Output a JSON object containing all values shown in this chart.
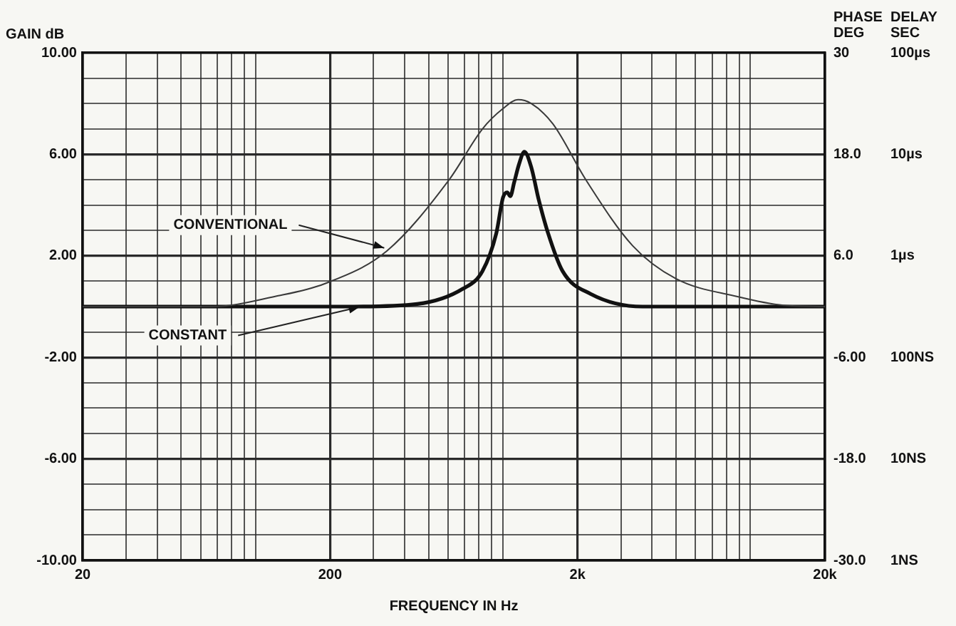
{
  "chart_data": {
    "type": "line",
    "xlabel": "FREQUENCY IN Hz",
    "ylabel": "GAIN dB",
    "y2label": "PHASE DEG",
    "y3label": "DELAY SEC",
    "log": "x",
    "grid": true,
    "legend": false,
    "marker": "none",
    "line_style": "solid",
    "xlim": [
      20,
      20000
    ],
    "xticks": [
      {
        "value": 20,
        "label": "20"
      },
      {
        "value": 30,
        "label": null
      },
      {
        "value": 40,
        "label": null
      },
      {
        "value": 50,
        "label": null
      },
      {
        "value": 60,
        "label": null
      },
      {
        "value": 70,
        "label": null
      },
      {
        "value": 80,
        "label": null
      },
      {
        "value": 90,
        "label": null
      },
      {
        "value": 100,
        "label": null
      },
      {
        "value": 200,
        "label": "200"
      },
      {
        "value": 300,
        "label": null
      },
      {
        "value": 400,
        "label": null
      },
      {
        "value": 500,
        "label": null
      },
      {
        "value": 600,
        "label": null
      },
      {
        "value": 700,
        "label": null
      },
      {
        "value": 800,
        "label": null
      },
      {
        "value": 900,
        "label": null
      },
      {
        "value": 1000,
        "label": null
      },
      {
        "value": 2000,
        "label": "2k"
      },
      {
        "value": 3000,
        "label": null
      },
      {
        "value": 4000,
        "label": null
      },
      {
        "value": 5000,
        "label": null
      },
      {
        "value": 6000,
        "label": null
      },
      {
        "value": 7000,
        "label": null
      },
      {
        "value": 8000,
        "label": null
      },
      {
        "value": 9000,
        "label": null
      },
      {
        "value": 10000,
        "label": null
      },
      {
        "value": 20000,
        "label": "20k"
      }
    ],
    "ylim": [
      -10,
      10
    ],
    "yticks": [
      {
        "value": -10,
        "label": "-10.00"
      },
      {
        "value": -9,
        "label": null
      },
      {
        "value": -8,
        "label": null
      },
      {
        "value": -7,
        "label": null
      },
      {
        "value": -6,
        "label": "-6.00"
      },
      {
        "value": -5,
        "label": null
      },
      {
        "value": -4,
        "label": null
      },
      {
        "value": -3,
        "label": null
      },
      {
        "value": -2,
        "label": "-2.00"
      },
      {
        "value": -1,
        "label": null
      },
      {
        "value": 0,
        "label": null
      },
      {
        "value": 1,
        "label": null
      },
      {
        "value": 2,
        "label": "2.00"
      },
      {
        "value": 3,
        "label": null
      },
      {
        "value": 4,
        "label": null
      },
      {
        "value": 5,
        "label": null
      },
      {
        "value": 6,
        "label": "6.00"
      },
      {
        "value": 7,
        "label": null
      },
      {
        "value": 8,
        "label": null
      },
      {
        "value": 9,
        "label": null
      },
      {
        "value": 10,
        "label": "10.00"
      }
    ],
    "y2lim": [
      -30,
      30
    ],
    "y2ticks": [
      {
        "value": -30,
        "label": "-30.0"
      },
      {
        "value": -18,
        "label": "-18.0"
      },
      {
        "value": -6,
        "label": "-6.00"
      },
      {
        "value": 6,
        "label": "6.0"
      },
      {
        "value": 18,
        "label": "18.0"
      },
      30
    ],
    "series": [
      {
        "color": "#3a3a3a",
        "x": [
          20,
          67,
          120,
          190,
          340,
          606,
          826,
          1000,
          1150,
          1300,
          1590,
          2160,
          3340,
          5000,
          8800,
          13600,
          20000
        ],
        "values": [
          0,
          0,
          0.4,
          0.9,
          2.2,
          5.0,
          7.0,
          7.8,
          8.15,
          8.0,
          7.2,
          5.0,
          2.4,
          1.1,
          0.4,
          0.05,
          0
        ]
      },
      {
        "color": "#111111",
        "x": [
          20,
          250,
          450,
          688,
          826,
          940,
          1000,
          1040,
          1070,
          1110,
          1160,
          1220,
          1300,
          1395,
          1520,
          1740,
          2260,
          3660,
          20000
        ],
        "values": [
          0,
          0,
          0.1,
          0.7,
          1.4,
          2.9,
          4.3,
          4.5,
          4.35,
          4.9,
          5.6,
          6.1,
          5.5,
          4.2,
          2.9,
          1.4,
          0.5,
          0,
          0
        ]
      }
    ],
    "annotations": [
      {
        "text": "CONVENTIONAL",
        "x": 340,
        "y": 2.2
      },
      {
        "text": "CONSTANT",
        "x": 270,
        "y": 0.1
      },
      "100µs",
      "10µs",
      "1µs",
      "100NS",
      "10NS",
      "1NS"
    ]
  }
}
